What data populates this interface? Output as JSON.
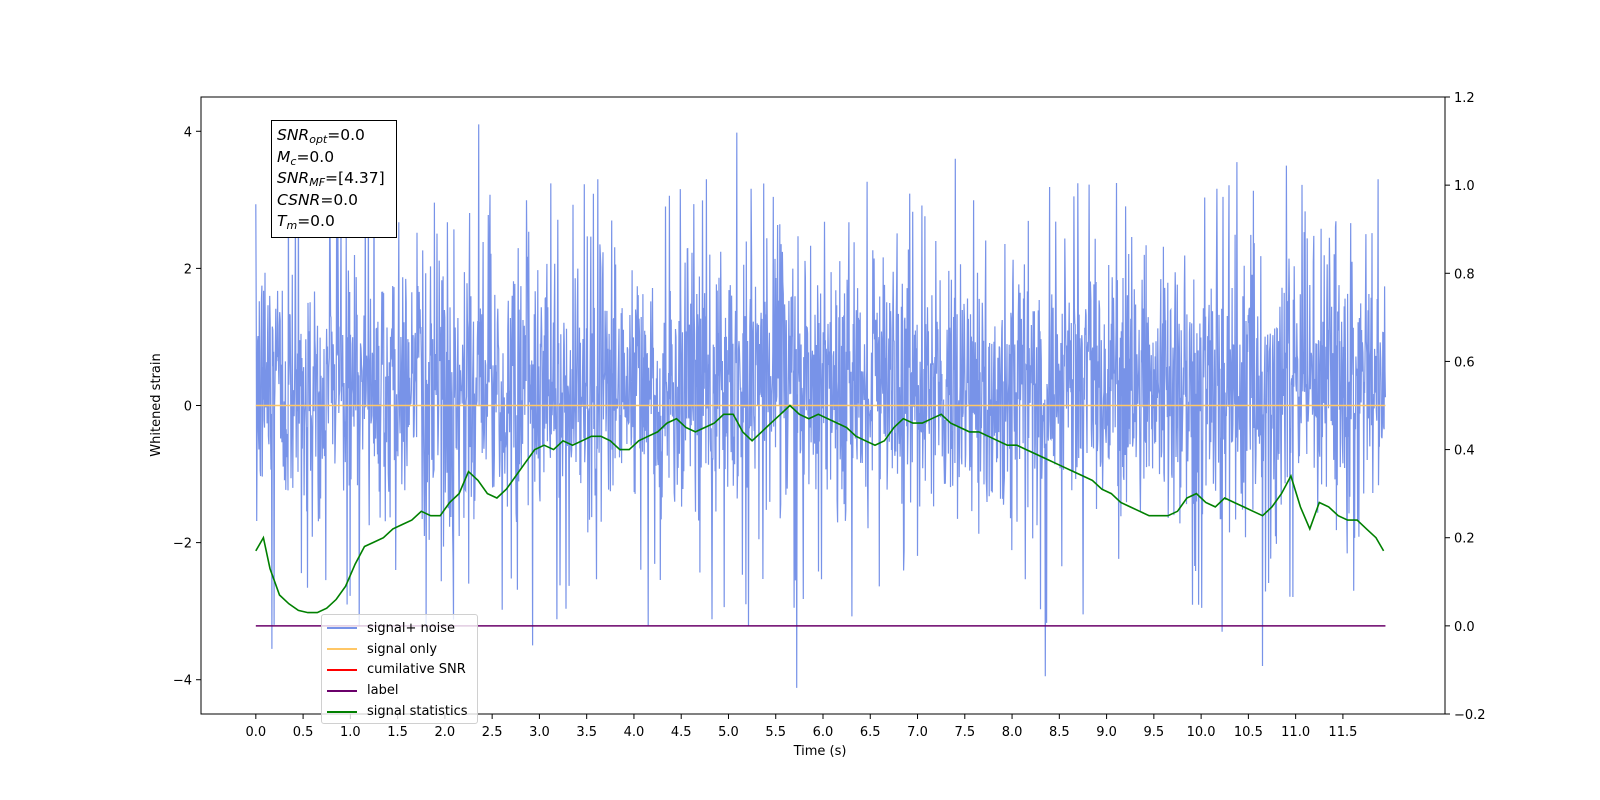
{
  "chart_data": {
    "type": "line",
    "xlabel": "Time (s)",
    "ylabel": "Whitened strain",
    "xlim": [
      -0.58,
      12.58
    ],
    "ylim": [
      -4.5,
      4.5
    ],
    "y2lim": [
      -0.2,
      1.2
    ],
    "xticks": [
      "0.0",
      "0.5",
      "1.0",
      "1.5",
      "2.0",
      "2.5",
      "3.0",
      "3.5",
      "4.0",
      "4.5",
      "5.0",
      "5.5",
      "6.0",
      "6.5",
      "7.0",
      "7.5",
      "8.0",
      "8.5",
      "9.0",
      "9.5",
      "10.0",
      "10.5",
      "11.0",
      "11.5"
    ],
    "yticks": [
      "−4",
      "−2",
      "0",
      "2",
      "4"
    ],
    "y2ticks": [
      "−0.2",
      "0.0",
      "0.2",
      "0.4",
      "0.6",
      "0.8",
      "1.0",
      "1.2"
    ],
    "info_box": {
      "snr_opt": {
        "var": "SNR",
        "sub": "opt",
        "value": "=0.0"
      },
      "mc": {
        "var": "M",
        "sub": "c",
        "value": "=0.0"
      },
      "snr_mf": {
        "var": "SNR",
        "sub": "MF",
        "value": "=[4.37]"
      },
      "csnr": {
        "var": "CSNR",
        "value": "=0.0"
      },
      "tm": {
        "var": "T",
        "sub": "m",
        "value": "=0.0"
      }
    },
    "legend": {
      "placement": "lower left",
      "entries": [
        {
          "label": "signal+ noise",
          "color": "#7893e8"
        },
        {
          "label": "signal only",
          "color": "#ffc766"
        },
        {
          "label": "cumilative SNR",
          "color": "#ff0000"
        },
        {
          "label": "label",
          "color": "#6a006a"
        },
        {
          "label": "signal statistics",
          "color": "#008000"
        }
      ]
    },
    "series": [
      {
        "name": "signal+ noise",
        "axis": "left",
        "color": "#7893e8",
        "description_envelope": "noise band approx ±2 with spikes to ±4",
        "spikes": [
          [
            0.17,
            -3.55
          ],
          [
            1.25,
            3.9
          ],
          [
            2.36,
            4.1
          ],
          [
            2.93,
            -3.5
          ],
          [
            5.09,
            3.98
          ],
          [
            5.72,
            -4.12
          ],
          [
            7.4,
            3.6
          ],
          [
            8.35,
            -3.95
          ],
          [
            10.22,
            -3.3
          ],
          [
            10.38,
            3.55
          ],
          [
            10.65,
            -3.8
          ],
          [
            10.9,
            3.5
          ]
        ]
      },
      {
        "name": "signal only",
        "axis": "left",
        "color": "#ffc766",
        "x": [
          0.0,
          11.95
        ],
        "y": [
          0.0,
          0.0
        ]
      },
      {
        "name": "label",
        "axis": "right",
        "color": "#6a006a",
        "x": [
          0.0,
          11.95
        ],
        "y": [
          0.0,
          0.0
        ]
      },
      {
        "name": "signal statistics",
        "axis": "right",
        "color": "#008000",
        "x": [
          0.0,
          0.08,
          0.15,
          0.25,
          0.35,
          0.45,
          0.55,
          0.65,
          0.75,
          0.85,
          0.95,
          1.05,
          1.15,
          1.25,
          1.35,
          1.45,
          1.55,
          1.65,
          1.75,
          1.85,
          1.95,
          2.05,
          2.15,
          2.25,
          2.35,
          2.45,
          2.55,
          2.65,
          2.75,
          2.85,
          2.95,
          3.05,
          3.15,
          3.25,
          3.35,
          3.45,
          3.55,
          3.65,
          3.75,
          3.85,
          3.95,
          4.05,
          4.15,
          4.25,
          4.35,
          4.45,
          4.55,
          4.65,
          4.75,
          4.85,
          4.95,
          5.05,
          5.15,
          5.25,
          5.35,
          5.45,
          5.55,
          5.65,
          5.75,
          5.85,
          5.95,
          6.05,
          6.15,
          6.25,
          6.35,
          6.45,
          6.55,
          6.65,
          6.75,
          6.85,
          6.95,
          7.05,
          7.15,
          7.25,
          7.35,
          7.45,
          7.55,
          7.65,
          7.75,
          7.85,
          7.95,
          8.05,
          8.15,
          8.25,
          8.35,
          8.45,
          8.55,
          8.65,
          8.75,
          8.85,
          8.95,
          9.05,
          9.15,
          9.25,
          9.35,
          9.45,
          9.55,
          9.65,
          9.75,
          9.85,
          9.95,
          10.05,
          10.15,
          10.25,
          10.35,
          10.45,
          10.55,
          10.65,
          10.75,
          10.85,
          10.95,
          11.05,
          11.15,
          11.25,
          11.35,
          11.45,
          11.55,
          11.65,
          11.75,
          11.85,
          11.93
        ],
        "y": [
          0.17,
          0.2,
          0.13,
          0.07,
          0.05,
          0.035,
          0.03,
          0.03,
          0.04,
          0.06,
          0.09,
          0.14,
          0.18,
          0.19,
          0.2,
          0.22,
          0.23,
          0.24,
          0.26,
          0.25,
          0.25,
          0.28,
          0.3,
          0.35,
          0.33,
          0.3,
          0.29,
          0.31,
          0.34,
          0.37,
          0.4,
          0.41,
          0.4,
          0.42,
          0.41,
          0.42,
          0.43,
          0.43,
          0.42,
          0.4,
          0.4,
          0.42,
          0.43,
          0.44,
          0.46,
          0.47,
          0.45,
          0.44,
          0.45,
          0.46,
          0.48,
          0.48,
          0.44,
          0.42,
          0.44,
          0.46,
          0.48,
          0.5,
          0.48,
          0.47,
          0.48,
          0.47,
          0.46,
          0.45,
          0.43,
          0.42,
          0.41,
          0.42,
          0.45,
          0.47,
          0.46,
          0.46,
          0.47,
          0.48,
          0.46,
          0.45,
          0.44,
          0.44,
          0.43,
          0.42,
          0.41,
          0.41,
          0.4,
          0.39,
          0.38,
          0.37,
          0.36,
          0.35,
          0.34,
          0.33,
          0.31,
          0.3,
          0.28,
          0.27,
          0.26,
          0.25,
          0.25,
          0.25,
          0.26,
          0.29,
          0.3,
          0.28,
          0.27,
          0.29,
          0.28,
          0.27,
          0.26,
          0.25,
          0.27,
          0.3,
          0.34,
          0.27,
          0.22,
          0.28,
          0.27,
          0.25,
          0.24,
          0.24,
          0.22,
          0.2,
          0.17
        ]
      }
    ]
  }
}
